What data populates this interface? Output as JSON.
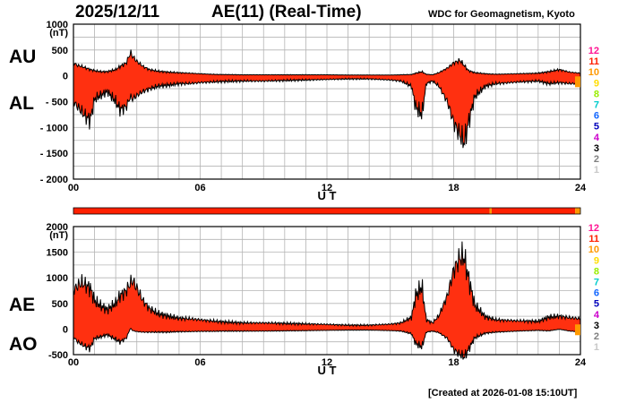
{
  "header": {
    "date": "2025/12/11",
    "title": "AE(11) (Real-Time)",
    "source": "WDC for Geomagnetism, Kyoto",
    "created": "[Created at 2026-01-08 15:10UT]"
  },
  "colors": {
    "fill": "#ff3010",
    "line": "#000000",
    "grid": "#b4b4b4"
  },
  "station_scale": [
    {
      "label": "12",
      "color": "#ff1493"
    },
    {
      "label": "11",
      "color": "#ff2000"
    },
    {
      "label": "10",
      "color": "#ff9900"
    },
    {
      "label": "9",
      "color": "#ffdd00"
    },
    {
      "label": "8",
      "color": "#99ee00"
    },
    {
      "label": "7",
      "color": "#00cccc"
    },
    {
      "label": "6",
      "color": "#1166ff"
    },
    {
      "label": "5",
      "color": "#0000bb"
    },
    {
      "label": "4",
      "color": "#cc00cc"
    },
    {
      "label": "3",
      "color": "#000000"
    },
    {
      "label": "2",
      "color": "#808080"
    },
    {
      "label": "1",
      "color": "#c8c8c8"
    }
  ],
  "station_bar": {
    "segments": [
      {
        "from": 0,
        "to": 19.7,
        "count": 11
      },
      {
        "from": 19.7,
        "to": 19.8,
        "count": 10
      },
      {
        "from": 19.8,
        "to": 23.75,
        "count": 11
      },
      {
        "from": 23.75,
        "to": 24,
        "count": 10
      }
    ]
  },
  "chart_data": [
    {
      "type": "area",
      "panel": "AU/AL",
      "label_upper": "AU",
      "label_lower": "AL",
      "unit": "(nT)",
      "xlabel": "U T",
      "xlim": [
        0,
        24
      ],
      "ylim": [
        -2000,
        1000
      ],
      "xticks": [
        "00",
        "06",
        "12",
        "18",
        "24"
      ],
      "yticks": [
        "1000",
        "500",
        "0",
        "- 500",
        "- 1000",
        "- 1500",
        "- 2000"
      ],
      "x": [
        0,
        0.2,
        0.4,
        0.6,
        0.8,
        1.0,
        1.3,
        1.6,
        2.0,
        2.2,
        2.5,
        2.7,
        2.8,
        3.0,
        3.3,
        3.6,
        4.0,
        4.5,
        5.0,
        5.5,
        6.0,
        6.5,
        7.0,
        8.0,
        9.0,
        10.0,
        11.0,
        12.0,
        13.0,
        14.0,
        15.0,
        15.5,
        16.0,
        16.2,
        16.5,
        16.7,
        17.0,
        17.3,
        17.7,
        18.0,
        18.3,
        18.5,
        18.7,
        19.0,
        19.5,
        20.0,
        21.0,
        22.0,
        22.5,
        23.0,
        23.5,
        24.0
      ],
      "series": [
        {
          "name": "AU",
          "values": [
            250,
            200,
            180,
            150,
            120,
            100,
            80,
            80,
            120,
            180,
            250,
            450,
            380,
            280,
            180,
            120,
            90,
            70,
            60,
            50,
            40,
            30,
            25,
            20,
            20,
            20,
            20,
            20,
            15,
            15,
            15,
            20,
            25,
            50,
            80,
            30,
            20,
            60,
            150,
            250,
            300,
            200,
            100,
            60,
            40,
            30,
            40,
            50,
            80,
            120,
            70,
            50
          ]
        },
        {
          "name": "AL",
          "values": [
            -500,
            -600,
            -700,
            -800,
            -850,
            -450,
            -380,
            -300,
            -500,
            -650,
            -600,
            -400,
            -450,
            -380,
            -300,
            -250,
            -200,
            -180,
            -150,
            -150,
            -130,
            -120,
            -110,
            -100,
            -100,
            -90,
            -80,
            -70,
            -60,
            -60,
            -80,
            -100,
            -200,
            -600,
            -750,
            -150,
            -100,
            -200,
            -500,
            -900,
            -1150,
            -1300,
            -900,
            -400,
            -200,
            -150,
            -120,
            -100,
            -150,
            -130,
            -150,
            -150
          ]
        }
      ]
    },
    {
      "type": "area",
      "panel": "AE/AO",
      "label_upper": "AE",
      "label_lower": "AO",
      "unit": "(nT)",
      "xlabel": "U T",
      "xlim": [
        0,
        24
      ],
      "ylim": [
        -500,
        2000
      ],
      "xticks": [
        "00",
        "06",
        "12",
        "18",
        "24"
      ],
      "yticks": [
        "2000",
        "1500",
        "1000",
        "500",
        "0",
        "-500"
      ],
      "x": [
        0,
        0.2,
        0.4,
        0.6,
        0.8,
        1.0,
        1.3,
        1.6,
        2.0,
        2.2,
        2.5,
        2.7,
        2.8,
        3.0,
        3.3,
        3.6,
        4.0,
        4.5,
        5.0,
        5.5,
        6.0,
        6.5,
        7.0,
        8.0,
        9.0,
        10.0,
        11.0,
        12.0,
        13.0,
        14.0,
        15.0,
        15.5,
        16.0,
        16.2,
        16.5,
        16.7,
        17.0,
        17.3,
        17.7,
        18.0,
        18.3,
        18.5,
        18.7,
        19.0,
        19.5,
        20.0,
        21.0,
        22.0,
        22.5,
        23.0,
        23.5,
        24.0
      ],
      "series": [
        {
          "name": "AE",
          "values": [
            750,
            850,
            900,
            850,
            800,
            550,
            450,
            380,
            500,
            650,
            750,
            900,
            950,
            800,
            550,
            400,
            300,
            250,
            210,
            200,
            180,
            160,
            140,
            120,
            120,
            110,
            100,
            90,
            75,
            75,
            95,
            120,
            225,
            650,
            830,
            180,
            120,
            260,
            650,
            1150,
            1400,
            1400,
            1000,
            460,
            240,
            180,
            160,
            150,
            230,
            250,
            220,
            200
          ]
        },
        {
          "name": "AO",
          "values": [
            -150,
            -250,
            -300,
            -350,
            -370,
            -180,
            -150,
            -110,
            -200,
            -250,
            -180,
            20,
            -30,
            -50,
            -60,
            -60,
            -60,
            -60,
            -50,
            -50,
            -45,
            -45,
            -40,
            -40,
            -40,
            -35,
            -30,
            -25,
            -20,
            -20,
            -30,
            -40,
            -90,
            -280,
            -350,
            -60,
            -40,
            -70,
            -180,
            -400,
            -500,
            -550,
            -400,
            -170,
            -80,
            -60,
            -40,
            -25,
            -35,
            -5,
            -40,
            -50
          ]
        }
      ]
    }
  ]
}
